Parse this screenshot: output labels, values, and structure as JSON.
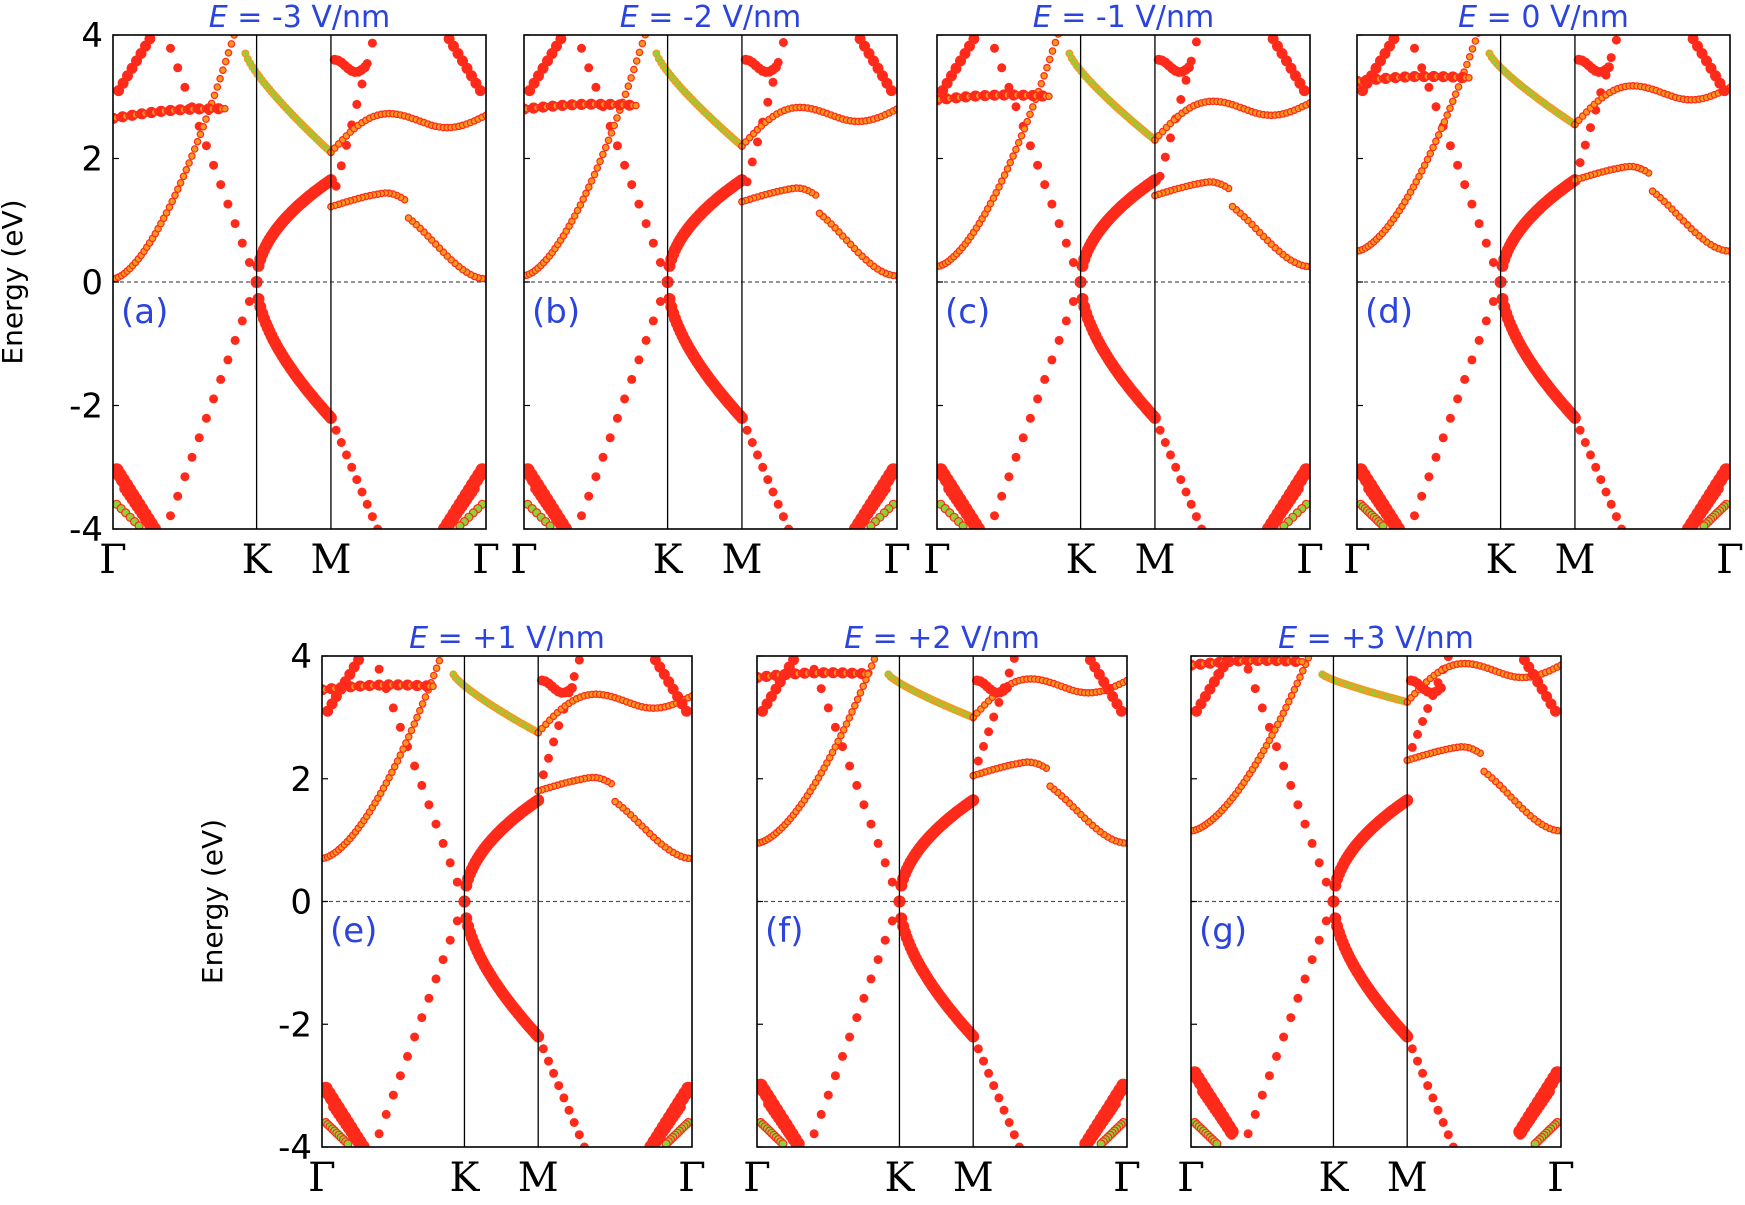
{
  "chart_data": [
    {
      "type": "scatter",
      "panel": "(a)",
      "title": {
        "italic": "E",
        "rest": " = -3 V/nm"
      },
      "field": -3,
      "ylabel": "Energy (eV)",
      "ylim": [
        -4,
        4
      ],
      "yticks": [
        "4",
        "2",
        "0",
        "-2",
        "-4"
      ],
      "kpoints": [
        "Γ",
        "K",
        "M",
        "Γ"
      ],
      "cb_min": 0.05,
      "sub_lo": 2.65,
      "sub_hi": 2.8,
      "m_split": 1.22,
      "cone_min": 2.1,
      "outer_hi": 4.0,
      "vb_gamma": -3.05
    },
    {
      "type": "scatter",
      "panel": "(b)",
      "title": {
        "italic": "E",
        "rest": " = -2 V/nm"
      },
      "field": -2,
      "ylabel": "",
      "ylim": [
        -4,
        4
      ],
      "yticks": [],
      "kpoints": [
        "Γ",
        "K",
        "M",
        "Γ"
      ],
      "cb_min": 0.1,
      "sub_lo": 2.8,
      "sub_hi": 2.85,
      "m_split": 1.3,
      "cone_min": 2.2,
      "outer_hi": 3.9,
      "vb_gamma": -3.05
    },
    {
      "type": "scatter",
      "panel": "(c)",
      "title": {
        "italic": "E",
        "rest": " = -1 V/nm"
      },
      "field": -1,
      "ylabel": "",
      "ylim": [
        -4,
        4
      ],
      "yticks": [],
      "kpoints": [
        "Γ",
        "K",
        "M",
        "Γ"
      ],
      "cb_min": 0.25,
      "sub_lo": 2.95,
      "sub_hi": 3.0,
      "m_split": 1.4,
      "cone_min": 2.3,
      "outer_hi": 3.8,
      "vb_gamma": -3.05
    },
    {
      "type": "scatter",
      "panel": "(d)",
      "title": {
        "italic": "E",
        "rest": " = 0 V/nm"
      },
      "field": 0,
      "ylabel": "",
      "ylim": [
        -4,
        4
      ],
      "yticks": [],
      "kpoints": [
        "Γ",
        "K",
        "M",
        "Γ"
      ],
      "cb_min": 0.5,
      "sub_lo": 3.25,
      "sub_hi": 3.3,
      "m_split": 1.65,
      "cone_min": 2.55,
      "outer_hi": 3.7,
      "vb_gamma": -3.05
    },
    {
      "type": "scatter",
      "panel": "(e)",
      "title": {
        "italic": "E",
        "rest": " = +1 V/nm"
      },
      "field": 1,
      "ylabel": "Energy (eV)",
      "ylim": [
        -4,
        4
      ],
      "yticks": [
        "4",
        "2",
        "0",
        "-2",
        "-4"
      ],
      "kpoints": [
        "Γ",
        "K",
        "M",
        "Γ"
      ],
      "cb_min": 0.7,
      "sub_lo": 3.45,
      "sub_hi": 3.5,
      "m_split": 1.8,
      "cone_min": 2.75,
      "outer_hi": 3.7,
      "vb_gamma": -3.05
    },
    {
      "type": "scatter",
      "panel": "(f)",
      "title": {
        "italic": "E",
        "rest": " = +2 V/nm"
      },
      "field": 2,
      "ylabel": "",
      "ylim": [
        -4,
        4
      ],
      "yticks": [],
      "kpoints": [
        "Γ",
        "K",
        "M",
        "Γ"
      ],
      "cb_min": 0.95,
      "sub_lo": 3.65,
      "sub_hi": 3.7,
      "m_split": 2.05,
      "cone_min": 3.0,
      "outer_hi": 3.9,
      "vb_gamma": -3.0
    },
    {
      "type": "scatter",
      "panel": "(g)",
      "title": {
        "italic": "E",
        "rest": " = +3 V/nm"
      },
      "field": 3,
      "ylabel": "",
      "ylim": [
        -4,
        4
      ],
      "yticks": [],
      "kpoints": [
        "Γ",
        "K",
        "M",
        "Γ"
      ],
      "cb_min": 1.15,
      "sub_lo": 3.85,
      "sub_hi": 3.9,
      "m_split": 2.3,
      "cone_min": 3.25,
      "outer_hi": 4.0,
      "vb_gamma": -2.8
    }
  ],
  "colors": {
    "red": "#ff2a1a",
    "orange": "#f39a1e",
    "green": "#8ed13a",
    "title": "#2a44dd",
    "fermi": "#555555"
  }
}
